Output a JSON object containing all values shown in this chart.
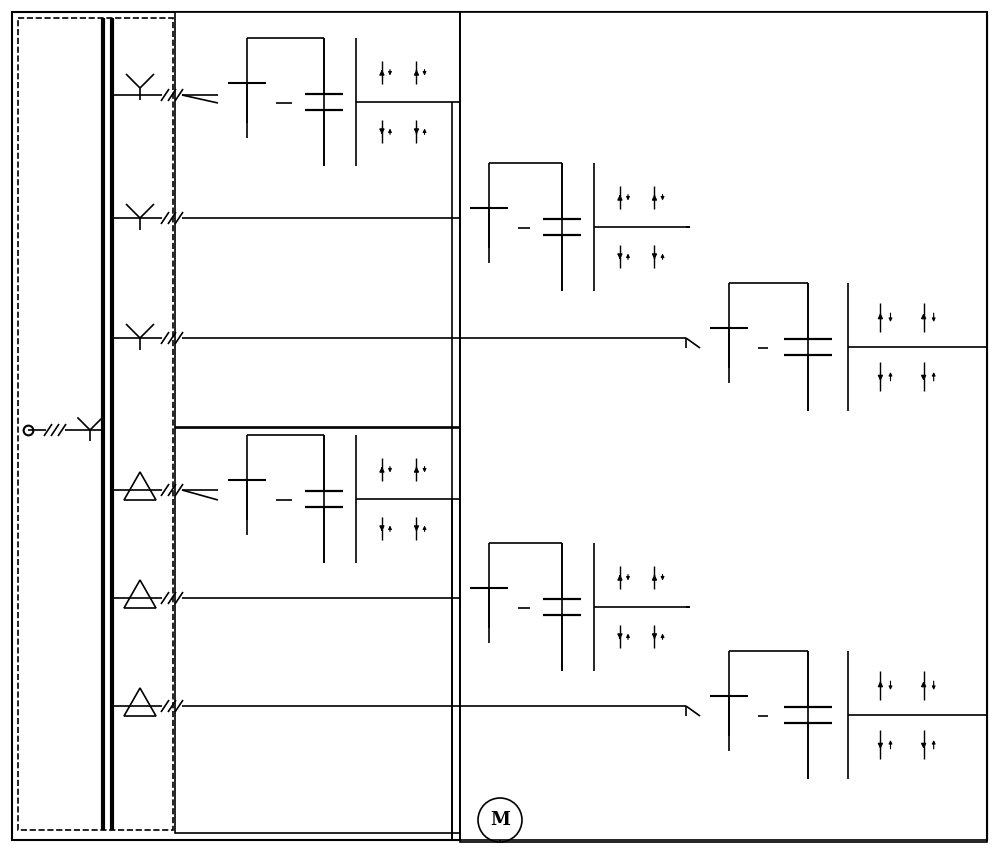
{
  "bg_color": "#ffffff",
  "line_color": "#000000",
  "green_color": "#00aa00",
  "lw": 1.2,
  "lw_thick": 2.5,
  "lw_bus": 3.0
}
